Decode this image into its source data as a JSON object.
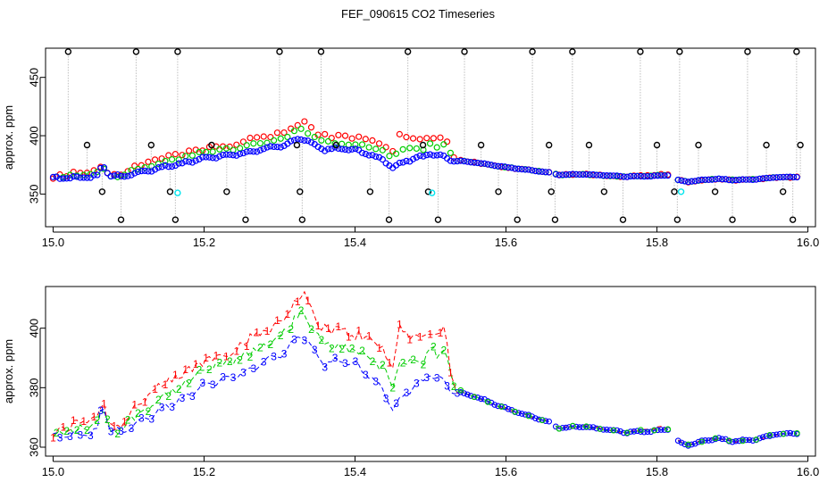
{
  "title": "FEF_090615  CO2 Timeseries",
  "colors": {
    "series1": "#ff0000",
    "series2": "#00cd00",
    "series3": "#0000ff",
    "outlier": "#000000",
    "cyan": "#00e5ee",
    "connector": "#bebebe",
    "axis": "#000000"
  },
  "chart_data": [
    {
      "id": "top",
      "type": "scatter",
      "title": "",
      "xlabel": "",
      "ylabel": "approx. ppm",
      "xlim": [
        14.99,
        16.01
      ],
      "ylim": [
        322,
        475
      ],
      "xticks": [
        15.0,
        15.2,
        15.4,
        15.6,
        15.8,
        16.0
      ],
      "xtick_labels": [
        "15.0",
        "15.2",
        "15.4",
        "15.6",
        "15.8",
        "16.0"
      ],
      "yticks": [
        350,
        400,
        450
      ],
      "ytick_labels": [
        "350",
        "400",
        "450"
      ],
      "outlier_levels": [
        472,
        392,
        352,
        328
      ],
      "outliers_x": [
        15.02,
        15.045,
        15.065,
        15.09,
        15.11,
        15.13,
        15.155,
        15.162,
        15.165,
        15.21,
        15.23,
        15.255,
        15.3,
        15.323,
        15.327,
        15.33,
        15.355,
        15.375,
        15.42,
        15.445,
        15.47,
        15.49,
        15.497,
        15.51,
        15.545,
        15.567,
        15.59,
        15.615,
        15.635,
        15.657,
        15.66,
        15.665,
        15.688,
        15.71,
        15.73,
        15.755,
        15.778,
        15.8,
        15.823,
        15.827,
        15.83,
        15.855,
        15.877,
        15.9,
        15.92,
        15.945,
        15.967,
        15.98,
        15.985,
        15.99
      ],
      "cyan_points": [
        {
          "x": 15.165,
          "y": 351
        },
        {
          "x": 15.502,
          "y": 351
        },
        {
          "x": 15.832,
          "y": 352
        }
      ],
      "series": [
        {
          "name": "1",
          "color": "#ff0000"
        },
        {
          "name": "2",
          "color": "#00cd00"
        },
        {
          "name": "3",
          "color": "#0000ff"
        }
      ]
    },
    {
      "id": "bottom",
      "type": "line",
      "title": "",
      "xlabel": "",
      "ylabel": "approx. ppm",
      "xlim": [
        14.99,
        16.01
      ],
      "ylim": [
        357,
        414
      ],
      "xticks": [
        15.0,
        15.2,
        15.4,
        15.6,
        15.8,
        16.0
      ],
      "xtick_labels": [
        "15.0",
        "15.2",
        "15.4",
        "15.6",
        "15.8",
        "16.0"
      ],
      "yticks": [
        360,
        380,
        400
      ],
      "ytick_labels": [
        "360",
        "380",
        "400"
      ],
      "series": [
        {
          "name": "1",
          "label": "1",
          "color": "#ff0000"
        },
        {
          "name": "2",
          "label": "2",
          "color": "#00cd00"
        },
        {
          "name": "3",
          "label": "3",
          "color": "#0000ff"
        }
      ]
    }
  ],
  "series_anchors": {
    "x": [
      15.0,
      15.03,
      15.05,
      15.06,
      15.065,
      15.075,
      15.09,
      15.11,
      15.13,
      15.15,
      15.17,
      15.2,
      15.23,
      15.26,
      15.29,
      15.31,
      15.32,
      15.33,
      15.345,
      15.36,
      15.38,
      15.4,
      15.42,
      15.44,
      15.45,
      15.46,
      15.47,
      15.49,
      15.5,
      15.51,
      15.52,
      15.53,
      15.56,
      15.6,
      15.65,
      15.66,
      15.67,
      15.7,
      15.73,
      15.76,
      15.8,
      15.815,
      15.82,
      15.84,
      15.86,
      15.88,
      15.9,
      15.93,
      15.96,
      15.99
    ],
    "s3": [
      363.5,
      364,
      364.5,
      366,
      375,
      366,
      365,
      368,
      370,
      374,
      376,
      381,
      383,
      386,
      390,
      392,
      396,
      398,
      392,
      388,
      389,
      388,
      384,
      378,
      372,
      376,
      379,
      382,
      385,
      383,
      381,
      379,
      377,
      373,
      369,
      368,
      366.5,
      367,
      366,
      365,
      365.5,
      366,
      363,
      360.5,
      362,
      363,
      362,
      362.5,
      364.5,
      364.5
    ],
    "s1": [
      364,
      368,
      370,
      371,
      376,
      367,
      368,
      374,
      378,
      381,
      384,
      389,
      392,
      396,
      401,
      404,
      410,
      412,
      404,
      400,
      399,
      398,
      396,
      392,
      386,
      402,
      398,
      396,
      400,
      398,
      400,
      380,
      377,
      373,
      369,
      368,
      366.5,
      367,
      366,
      365,
      366.5,
      367,
      363,
      360.5,
      362,
      363,
      362,
      362.5,
      364.5,
      364.5
    ],
    "s2": [
      364,
      366,
      367,
      368,
      375,
      366,
      366,
      371,
      374,
      378,
      380,
      386,
      388,
      391,
      396,
      399,
      403,
      405,
      399,
      394,
      394,
      393,
      390,
      386,
      380,
      390,
      388,
      388,
      393,
      391,
      392,
      380,
      377,
      373,
      369,
      368,
      366.5,
      367,
      366,
      365,
      366,
      366,
      363,
      360.5,
      362,
      363,
      362,
      362.5,
      364.5,
      364.5
    ]
  }
}
